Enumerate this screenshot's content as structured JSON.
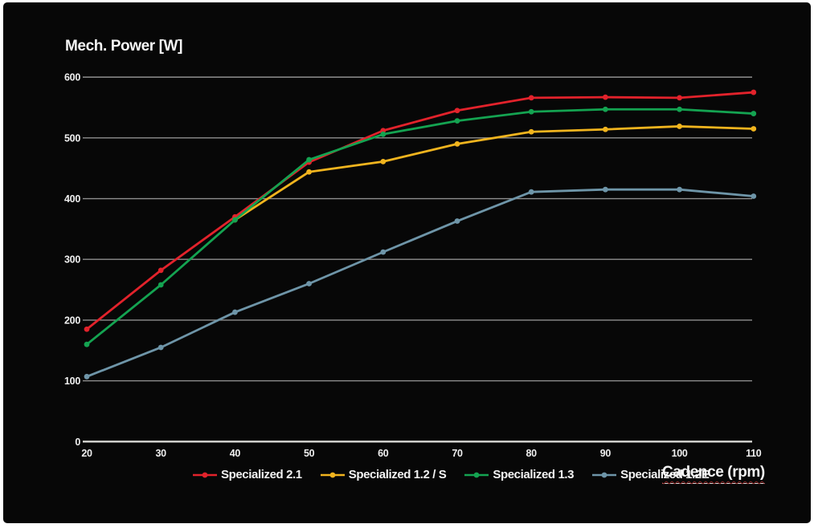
{
  "title": "Mech. Power [W]",
  "x_axis_label": "Cadence (rpm)",
  "panel": {
    "background": "#070707",
    "frame": "#ffffff"
  },
  "chart_data": {
    "type": "line",
    "x": [
      20,
      30,
      40,
      50,
      60,
      70,
      80,
      90,
      100,
      110
    ],
    "xlabel": "Cadence (rpm)",
    "ylabel": "Mech. Power [W]",
    "ylim": [
      0,
      600
    ],
    "y_ticks": [
      0,
      100,
      200,
      300,
      400,
      500,
      600
    ],
    "grid": true,
    "grid_color": "#8f8f8f",
    "zero_line_color": "#d8d8d5",
    "text_color": "#efefef",
    "legend_position": "bottom",
    "series": [
      {
        "name": "Specialized 2.1",
        "color": "#e2222b",
        "values": [
          185,
          282,
          370,
          460,
          512,
          545,
          566,
          567,
          566,
          575
        ]
      },
      {
        "name": "Specialized 1.2 / S",
        "color": "#f1b41e",
        "values": [
          null,
          null,
          365,
          444,
          461,
          490,
          510,
          514,
          519,
          515
        ]
      },
      {
        "name": "Specialized 1.3",
        "color": "#14a351",
        "values": [
          160,
          258,
          365,
          464,
          506,
          528,
          543,
          547,
          547,
          540
        ]
      },
      {
        "name": "Specialized 1.2E",
        "color": "#6e95a8",
        "values": [
          107,
          155,
          213,
          260,
          312,
          363,
          411,
          415,
          415,
          404
        ]
      }
    ]
  }
}
